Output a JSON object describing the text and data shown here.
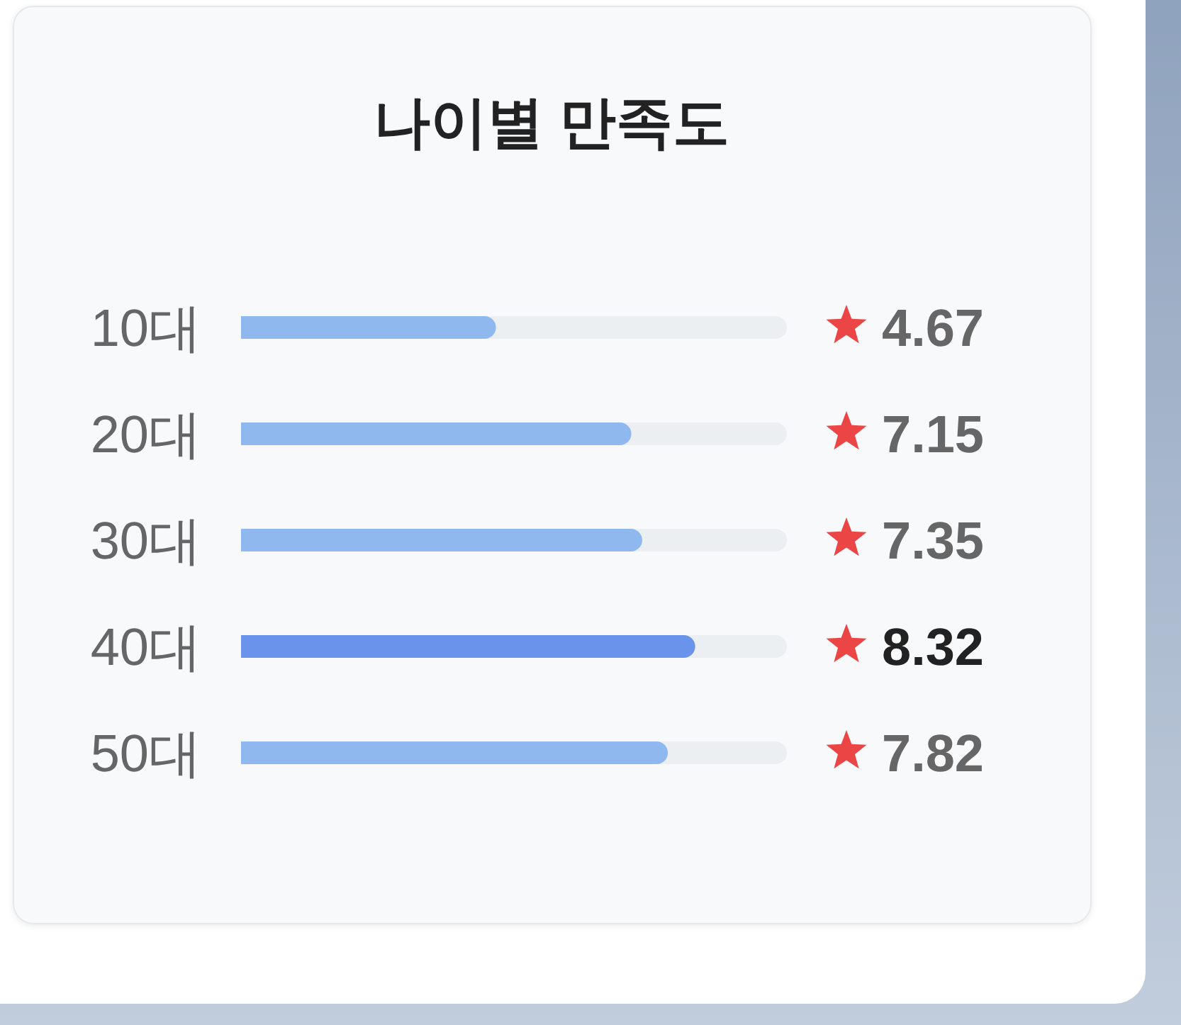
{
  "chart_data": {
    "type": "bar",
    "orientation": "horizontal",
    "title": "나이별 만족도",
    "categories": [
      "10대",
      "20대",
      "30대",
      "40대",
      "50대"
    ],
    "values": [
      4.67,
      7.15,
      7.35,
      8.32,
      7.82
    ],
    "colors": [
      "#8fb8ef",
      "#8fb8ef",
      "#8fb8ef",
      "#6a93ec",
      "#8fb8ef"
    ],
    "xlim": [
      0,
      10
    ],
    "data_labels": true,
    "tick_labels": "y"
  }
}
